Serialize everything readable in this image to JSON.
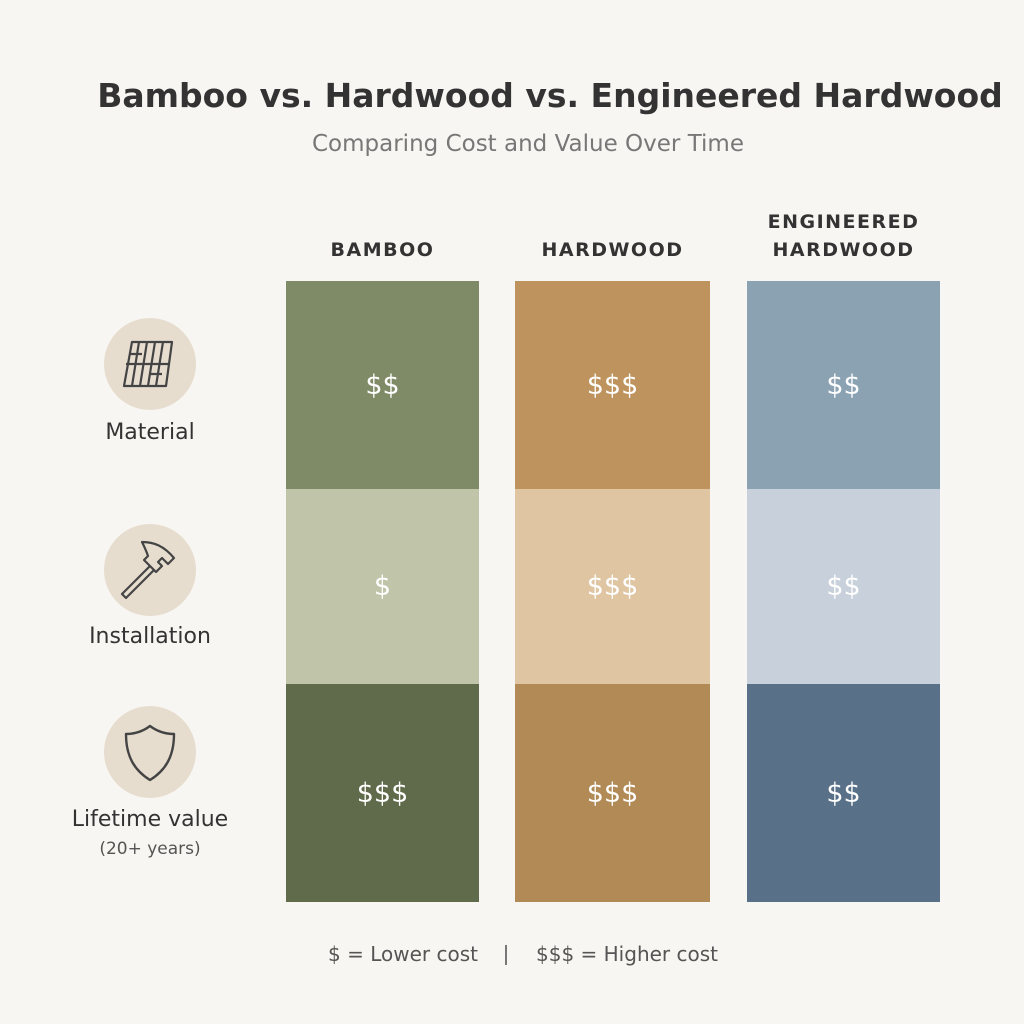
{
  "header": {
    "title": "Bamboo vs. Hardwood vs. Engineered Hardwood",
    "subtitle": "Comparing Cost and Value Over Time"
  },
  "columns": [
    "BAMBOO",
    "HARDWOOD",
    "ENGINEERED HARDWOOD"
  ],
  "rows": [
    {
      "label": "Material",
      "cells": [
        "$$",
        "$$$",
        "$$"
      ]
    },
    {
      "label": "Installation",
      "cells": [
        "$",
        "$$$",
        "$$"
      ]
    },
    {
      "label": "Lifetime value",
      "sublabel": "(20+ years)",
      "cells": [
        "$$$",
        "$$$",
        "$$"
      ]
    }
  ],
  "legend": [
    "$ = Lower cost",
    "$$$ = Higher cost"
  ]
}
